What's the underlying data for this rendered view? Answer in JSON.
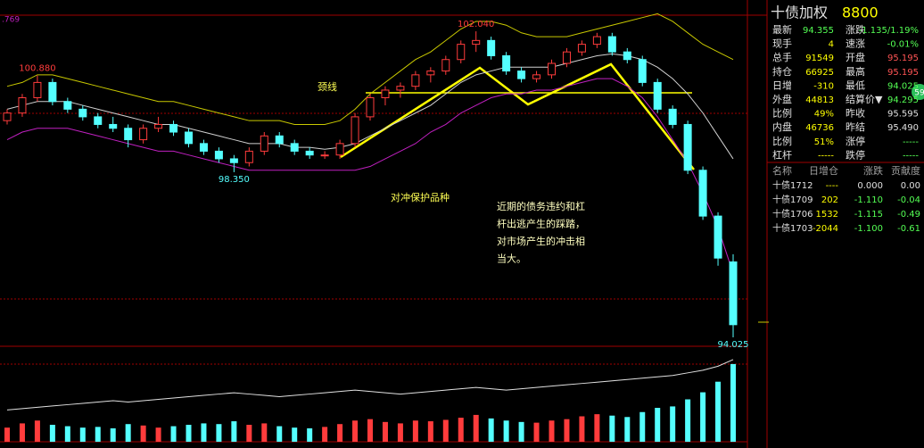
{
  "chart_data": {
    "type": "candlestick",
    "indicator_label": ".769",
    "ylim": [
      93.79,
      102.86
    ],
    "candles": [
      [
        99.7,
        100.0,
        99.6,
        99.9
      ],
      [
        99.9,
        100.4,
        99.8,
        100.3
      ],
      [
        100.3,
        100.88,
        100.2,
        100.7
      ],
      [
        100.7,
        100.8,
        100.1,
        100.2
      ],
      [
        100.2,
        100.3,
        99.9,
        100.0
      ],
      [
        100.0,
        100.1,
        99.7,
        99.8
      ],
      [
        99.8,
        99.9,
        99.5,
        99.6
      ],
      [
        99.6,
        99.8,
        99.4,
        99.5
      ],
      [
        99.5,
        99.6,
        99.0,
        99.2
      ],
      [
        99.2,
        99.6,
        99.1,
        99.5
      ],
      [
        99.5,
        99.8,
        99.4,
        99.6
      ],
      [
        99.6,
        99.7,
        99.3,
        99.4
      ],
      [
        99.4,
        99.5,
        99.0,
        99.1
      ],
      [
        99.1,
        99.2,
        98.8,
        98.9
      ],
      [
        98.9,
        99.0,
        98.6,
        98.7
      ],
      [
        98.7,
        98.8,
        98.35,
        98.6
      ],
      [
        98.6,
        99.0,
        98.5,
        98.9
      ],
      [
        98.9,
        99.4,
        98.8,
        99.3
      ],
      [
        99.3,
        99.4,
        99.0,
        99.1
      ],
      [
        99.1,
        99.2,
        98.8,
        98.9
      ],
      [
        98.9,
        99.0,
        98.7,
        98.8
      ],
      [
        98.8,
        98.9,
        98.7,
        98.8
      ],
      [
        98.8,
        99.2,
        98.7,
        99.1
      ],
      [
        99.1,
        99.9,
        99.0,
        99.8
      ],
      [
        99.8,
        100.4,
        99.7,
        100.3
      ],
      [
        100.3,
        100.6,
        100.1,
        100.5
      ],
      [
        100.5,
        100.7,
        100.3,
        100.6
      ],
      [
        100.6,
        101.0,
        100.5,
        100.9
      ],
      [
        100.9,
        101.1,
        100.7,
        101.0
      ],
      [
        101.0,
        101.4,
        100.9,
        101.3
      ],
      [
        101.3,
        101.8,
        101.2,
        101.7
      ],
      [
        101.7,
        102.04,
        101.5,
        101.8
      ],
      [
        101.8,
        101.9,
        101.3,
        101.4
      ],
      [
        101.4,
        101.5,
        100.9,
        101.0
      ],
      [
        101.0,
        101.1,
        100.7,
        100.8
      ],
      [
        100.8,
        101.0,
        100.7,
        100.9
      ],
      [
        100.9,
        101.3,
        100.8,
        101.2
      ],
      [
        101.2,
        101.6,
        101.1,
        101.5
      ],
      [
        101.5,
        101.8,
        101.4,
        101.7
      ],
      [
        101.7,
        102.0,
        101.6,
        101.9
      ],
      [
        101.9,
        102.0,
        101.4,
        101.5
      ],
      [
        101.5,
        101.6,
        101.2,
        101.3
      ],
      [
        101.3,
        101.4,
        100.6,
        100.7
      ],
      [
        100.7,
        100.8,
        99.9,
        100.0
      ],
      [
        100.0,
        100.1,
        99.5,
        99.6
      ],
      [
        99.6,
        99.7,
        98.3,
        98.4
      ],
      [
        98.4,
        98.5,
        97.1,
        97.2
      ],
      [
        97.2,
        97.3,
        95.9,
        96.1
      ],
      [
        96.0,
        96.2,
        94.025,
        94.355
      ]
    ],
    "bands": [
      {
        "color": "#c8c800",
        "values": [
          100.6,
          100.7,
          100.9,
          100.9,
          100.8,
          100.7,
          100.6,
          100.5,
          100.4,
          100.3,
          100.2,
          100.2,
          100.1,
          100.0,
          99.9,
          99.8,
          99.7,
          99.7,
          99.7,
          99.6,
          99.6,
          99.6,
          99.7,
          100.0,
          100.4,
          100.7,
          101.0,
          101.3,
          101.5,
          101.8,
          102.1,
          102.3,
          102.3,
          102.2,
          102.0,
          101.9,
          101.9,
          101.9,
          102.0,
          102.1,
          102.2,
          102.3,
          102.4,
          102.5,
          102.3,
          102.0,
          101.7,
          101.5,
          101.3
        ]
      },
      {
        "color": "#d0d0d0",
        "values": [
          100.0,
          100.1,
          100.2,
          100.2,
          100.2,
          100.1,
          100.0,
          99.9,
          99.8,
          99.7,
          99.6,
          99.6,
          99.5,
          99.4,
          99.3,
          99.2,
          99.1,
          99.1,
          99.1,
          99.0,
          99.0,
          98.95,
          99.0,
          99.1,
          99.3,
          99.5,
          99.7,
          99.9,
          100.1,
          100.4,
          100.7,
          100.9,
          101.0,
          101.1,
          101.1,
          101.1,
          101.1,
          101.2,
          101.3,
          101.4,
          101.45,
          101.4,
          101.3,
          101.1,
          100.8,
          100.4,
          99.9,
          99.3,
          98.7
        ]
      },
      {
        "color": "#c020c0",
        "values": [
          99.2,
          99.4,
          99.5,
          99.5,
          99.5,
          99.4,
          99.3,
          99.2,
          99.1,
          99.0,
          98.9,
          98.9,
          98.8,
          98.7,
          98.6,
          98.5,
          98.4,
          98.4,
          98.4,
          98.4,
          98.4,
          98.4,
          98.4,
          98.4,
          98.5,
          98.7,
          98.9,
          99.1,
          99.4,
          99.6,
          99.9,
          100.1,
          100.3,
          100.4,
          100.4,
          100.5,
          100.5,
          100.6,
          100.7,
          100.8,
          100.8,
          100.6,
          100.3,
          99.8,
          99.2,
          98.6,
          97.8,
          96.9,
          95.7
        ]
      }
    ],
    "price_labels": [
      {
        "value": 100.88,
        "label": "100.880"
      },
      {
        "value": 98.35,
        "label": "98.350"
      },
      {
        "value": 102.04,
        "label": "102.040"
      },
      {
        "value": 94.025,
        "label": "94.025"
      }
    ],
    "volume": [
      2000,
      2600,
      3000,
      2400,
      2200,
      2000,
      2100,
      1900,
      2500,
      2300,
      2000,
      2200,
      2400,
      2600,
      2500,
      2900,
      2400,
      2600,
      2200,
      2000,
      1900,
      2100,
      2500,
      3000,
      3200,
      2800,
      2600,
      3000,
      2900,
      3100,
      3400,
      3800,
      3300,
      3000,
      2800,
      2700,
      3000,
      3200,
      3600,
      3900,
      3700,
      3500,
      4200,
      4800,
      5000,
      6000,
      7000,
      8500,
      11000
    ],
    "volume_lim": [
      0,
      12000
    ],
    "open_interest": [
      52000,
      52500,
      53000,
      53500,
      54000,
      54500,
      55000,
      55500,
      55000,
      55500,
      56000,
      56500,
      57000,
      57500,
      58000,
      58500,
      58000,
      57500,
      57000,
      57500,
      58000,
      58500,
      59000,
      59500,
      59000,
      58500,
      58000,
      58500,
      59000,
      59500,
      60000,
      60500,
      60000,
      59500,
      60000,
      60500,
      61000,
      61500,
      62000,
      62500,
      63000,
      63500,
      64000,
      64500,
      65000,
      66000,
      67000,
      68500,
      71000
    ],
    "open_interest_lim": [
      40000,
      72000
    ],
    "annotations": [
      "颈线",
      "对冲保护品种"
    ],
    "note_lines": [
      "近期的债务违约和杠",
      "杆出逃产生的踩踏，",
      "对市场产生的冲击相",
      "当大。"
    ]
  },
  "panel": {
    "title": "十债加权",
    "code": "8800",
    "badge": "59",
    "quote_rows": [
      [
        "最新",
        "94.355",
        "涨跌",
        "-1.135/1.19%"
      ],
      [
        "现手",
        "4",
        "速涨",
        "-0.01%"
      ],
      [
        "总手",
        "91549",
        "开盘",
        "95.195"
      ],
      [
        "持仓",
        "66925",
        "最高",
        "95.195"
      ],
      [
        "日增",
        "-310",
        "最低",
        "94.025"
      ],
      [
        "外盘",
        "44813",
        "结算价▼",
        "94.295"
      ],
      [
        "比例",
        "49%",
        "昨收",
        "95.595"
      ],
      [
        "内盘",
        "46736",
        "昨结",
        "95.490"
      ],
      [
        "比例",
        "51%",
        "涨停",
        "-----"
      ],
      [
        "杠杆",
        "-----",
        "跌停",
        "-----"
      ]
    ],
    "contract_header": [
      "名称",
      "日增仓",
      "涨跌",
      "贡献度"
    ],
    "contract_rows": [
      [
        "十债1712",
        "----",
        "0.000",
        "0.00"
      ],
      [
        "十债1709",
        "202",
        "-1.110",
        "-0.04"
      ],
      [
        "十债1706",
        "1532",
        "-1.115",
        "-0.49"
      ],
      [
        "十债1703",
        "-2044",
        "-1.100",
        "-0.61"
      ]
    ]
  }
}
